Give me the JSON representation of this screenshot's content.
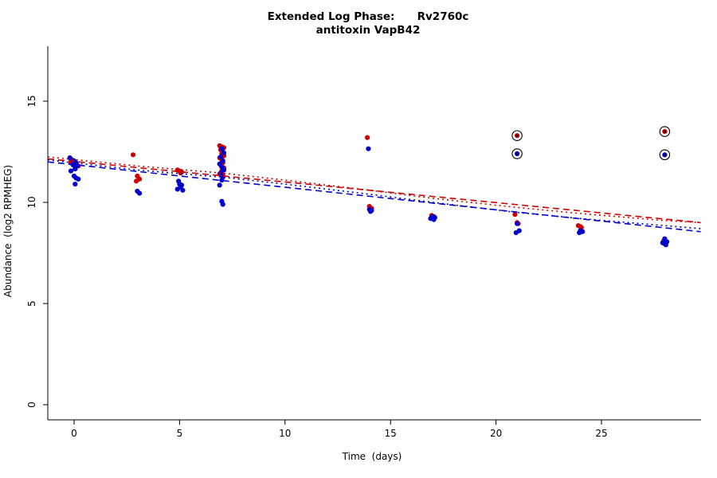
{
  "chart_data": {
    "type": "scatter",
    "title": "Extended Log Phase:      Rv2760c",
    "subtitle": "antitoxin VapB42",
    "xlabel": "Time  (days)",
    "ylabel": "Abundance  (log2 RPMHEG)",
    "xlim": [
      -1.25,
      29.7
    ],
    "ylim": [
      -0.75,
      17.6
    ],
    "xticks": [
      0,
      5,
      10,
      15,
      20,
      25
    ],
    "yticks": [
      0,
      5,
      10,
      15
    ],
    "grid": false,
    "legend": "none",
    "colors": {
      "red": "#CC0000",
      "blue": "#0000CC",
      "axis": "#000000"
    },
    "series": [
      {
        "name": "red",
        "color": "#CC0000",
        "points": [
          [
            -0.15,
            11.95
          ],
          [
            0.0,
            11.85
          ],
          [
            0.1,
            11.9
          ],
          [
            0.05,
            11.75
          ],
          [
            0.2,
            11.8
          ],
          [
            -0.05,
            12.0
          ],
          [
            2.8,
            12.35
          ],
          [
            3.0,
            11.3
          ],
          [
            3.1,
            11.15
          ],
          [
            2.95,
            11.05
          ],
          [
            4.9,
            11.6
          ],
          [
            5.0,
            11.55
          ],
          [
            5.1,
            11.5
          ],
          [
            5.05,
            11.45
          ],
          [
            6.9,
            12.8
          ],
          [
            7.0,
            12.75
          ],
          [
            7.1,
            12.7
          ],
          [
            6.95,
            12.6
          ],
          [
            7.05,
            12.5
          ],
          [
            7.0,
            12.4
          ],
          [
            7.1,
            12.3
          ],
          [
            6.9,
            12.2
          ],
          [
            7.0,
            12.1
          ],
          [
            7.05,
            11.95
          ],
          [
            6.95,
            11.85
          ],
          [
            7.1,
            11.7
          ],
          [
            7.0,
            11.55
          ],
          [
            6.9,
            11.4
          ],
          [
            7.05,
            11.35
          ],
          [
            13.9,
            13.2
          ],
          [
            14.0,
            9.8
          ],
          [
            14.1,
            9.7
          ],
          [
            16.95,
            9.35
          ],
          [
            17.05,
            9.3
          ],
          [
            20.9,
            9.4
          ],
          [
            21.0,
            9.0
          ],
          [
            21.05,
            8.95
          ],
          [
            23.9,
            8.85
          ],
          [
            24.0,
            8.8
          ],
          [
            24.05,
            8.75
          ],
          [
            27.95,
            8.1
          ],
          [
            28.05,
            8.0
          ],
          [
            28.0,
            7.95
          ]
        ]
      },
      {
        "name": "blue",
        "color": "#0000CC",
        "points": [
          [
            -0.2,
            12.2
          ],
          [
            -0.1,
            12.1
          ],
          [
            0.0,
            12.05
          ],
          [
            0.1,
            11.95
          ],
          [
            -0.05,
            11.85
          ],
          [
            0.15,
            11.8
          ],
          [
            0.05,
            11.65
          ],
          [
            -0.15,
            11.55
          ],
          [
            0.0,
            11.3
          ],
          [
            0.1,
            11.2
          ],
          [
            0.2,
            11.15
          ],
          [
            0.05,
            10.9
          ],
          [
            3.0,
            10.55
          ],
          [
            3.1,
            10.45
          ],
          [
            4.95,
            11.05
          ],
          [
            5.0,
            10.9
          ],
          [
            5.1,
            10.85
          ],
          [
            5.05,
            10.75
          ],
          [
            4.9,
            10.65
          ],
          [
            5.15,
            10.6
          ],
          [
            7.0,
            12.65
          ],
          [
            7.1,
            12.45
          ],
          [
            6.95,
            12.25
          ],
          [
            7.05,
            12.05
          ],
          [
            6.9,
            11.9
          ],
          [
            7.0,
            11.75
          ],
          [
            7.1,
            11.6
          ],
          [
            6.95,
            11.45
          ],
          [
            7.05,
            11.25
          ],
          [
            7.0,
            11.1
          ],
          [
            6.9,
            10.85
          ],
          [
            7.0,
            10.05
          ],
          [
            7.05,
            9.9
          ],
          [
            13.95,
            12.65
          ],
          [
            14.0,
            9.65
          ],
          [
            14.1,
            9.6
          ],
          [
            14.05,
            9.55
          ],
          [
            17.0,
            9.3
          ],
          [
            17.1,
            9.25
          ],
          [
            16.9,
            9.2
          ],
          [
            17.05,
            9.15
          ],
          [
            21.0,
            8.95
          ],
          [
            21.1,
            8.6
          ],
          [
            20.95,
            8.5
          ],
          [
            24.0,
            8.6
          ],
          [
            24.1,
            8.55
          ],
          [
            23.95,
            8.5
          ],
          [
            28.0,
            8.2
          ],
          [
            28.1,
            8.05
          ],
          [
            27.9,
            8.0
          ],
          [
            28.05,
            7.9
          ]
        ]
      }
    ],
    "circled_points": [
      {
        "x": 21.0,
        "y": 13.3,
        "color": "#CC0000"
      },
      {
        "x": 21.0,
        "y": 12.4,
        "color": "#0000CC"
      },
      {
        "x": 28.0,
        "y": 13.5,
        "color": "#CC0000"
      },
      {
        "x": 28.0,
        "y": 12.35,
        "color": "#0000CC"
      }
    ],
    "lines": [
      {
        "name": "red-dashed-fit",
        "color": "#CC0000",
        "style": "dashed",
        "points": [
          [
            -1.25,
            12.15
          ],
          [
            29.7,
            9.0
          ]
        ]
      },
      {
        "name": "blue-dashed-fit",
        "color": "#0000CC",
        "style": "dashed",
        "points": [
          [
            -1.25,
            12.0
          ],
          [
            29.7,
            8.55
          ]
        ]
      },
      {
        "name": "red-dotted-fit",
        "color": "#CC0000",
        "style": "dotted",
        "points": [
          [
            -1.25,
            12.25
          ],
          [
            3,
            11.8
          ],
          [
            7,
            11.45
          ],
          [
            10,
            11.1
          ],
          [
            14,
            10.6
          ],
          [
            17,
            10.2
          ],
          [
            21,
            9.75
          ],
          [
            24,
            9.45
          ],
          [
            28,
            9.1
          ],
          [
            29.7,
            9.0
          ]
        ]
      },
      {
        "name": "blue-dotted-fit",
        "color": "#0000CC",
        "style": "dotted",
        "points": [
          [
            -1.25,
            12.1
          ],
          [
            3,
            11.6
          ],
          [
            7,
            11.25
          ],
          [
            10,
            10.9
          ],
          [
            14,
            10.4
          ],
          [
            17,
            10.0
          ],
          [
            21,
            9.5
          ],
          [
            24,
            9.2
          ],
          [
            28,
            8.85
          ],
          [
            29.7,
            8.7
          ]
        ]
      }
    ]
  }
}
